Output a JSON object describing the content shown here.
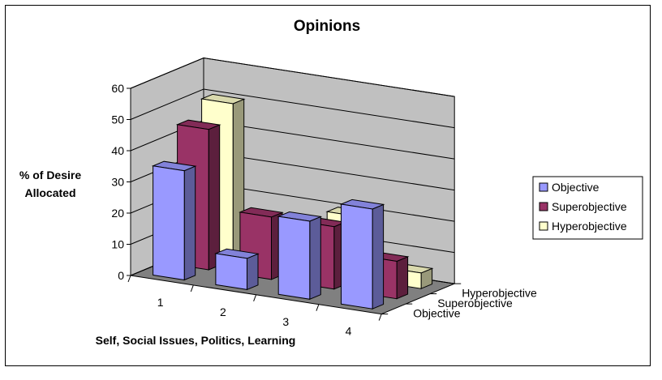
{
  "chart_data": {
    "type": "bar",
    "subtype": "3d-column",
    "title": "Opinions",
    "xlabel": "Self, Social Issues, Politics, Learning",
    "ylabel": "% of Desire Allocated",
    "categories": [
      "1",
      "2",
      "3",
      "4"
    ],
    "depth_labels": [
      "Objective",
      "Superobjective",
      "Hyperobjective"
    ],
    "series": [
      {
        "name": "Objective",
        "values": [
          35,
          10,
          25,
          32
        ]
      },
      {
        "name": "Superobjective",
        "values": [
          45,
          20,
          20,
          12
        ]
      },
      {
        "name": "Hyperobjective",
        "values": [
          50,
          10,
          20,
          5
        ]
      }
    ],
    "ylim": [
      0,
      60
    ],
    "yticks": [
      0,
      10,
      20,
      30,
      40,
      50,
      60
    ],
    "grid": true,
    "legend": "right",
    "colors": {
      "Objective": "#9999ff",
      "Superobjective": "#993366",
      "Hyperobjective": "#ffffcc",
      "walls": "#c0c0c0",
      "floor": "#808080"
    }
  }
}
